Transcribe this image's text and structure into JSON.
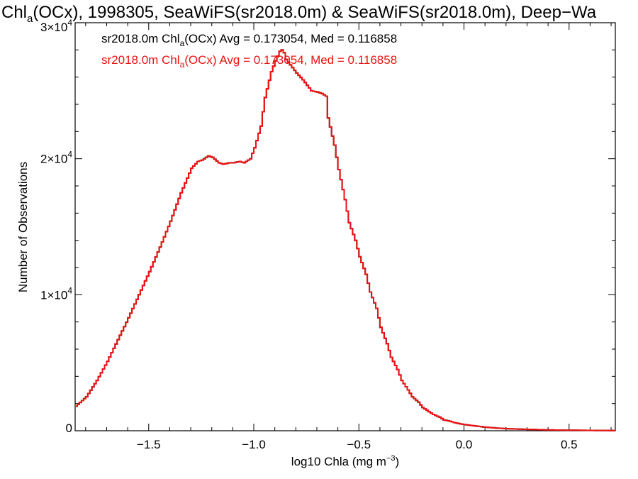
{
  "chart_data": {
    "type": "line",
    "title": {
      "prefix": "Chl",
      "sub": "a",
      "suffix": "(OCx), 1998305, SeaWiFS(sr2018.0m) & SeaWiFS(sr2018.0m), Deep−Wa"
    },
    "xlabel": {
      "main": "log10 Chla (mg m",
      "sup": "−3",
      "close": ")"
    },
    "ylabel": "Number of Observations",
    "xlim": [
      -1.85,
      0.72
    ],
    "ylim": [
      0,
      30000
    ],
    "x_ticks": [
      {
        "value": -1.5,
        "label": "−1.5"
      },
      {
        "value": -1.0,
        "label": "−1.0"
      },
      {
        "value": -0.5,
        "label": "−0.5"
      },
      {
        "value": 0.0,
        "label": "0.0"
      },
      {
        "value": 0.5,
        "label": "0.5"
      }
    ],
    "y_ticks": [
      {
        "value": 0,
        "mant": "0",
        "exp": ""
      },
      {
        "value": 10000,
        "mant": "1×10",
        "exp": "4"
      },
      {
        "value": 20000,
        "mant": "2×10",
        "exp": "4"
      },
      {
        "value": 30000,
        "mant": "3×10",
        "exp": "4"
      }
    ],
    "legend_placement": "top-left",
    "series": [
      {
        "name": {
          "pre": "sr2018.0m Chl",
          "sub": "a",
          "post": "(OCx) Avg = 0.173054, Med = 0.116858"
        },
        "color": "#000000",
        "x": [
          -1.85,
          -1.8,
          -1.75,
          -1.7,
          -1.65,
          -1.6,
          -1.55,
          -1.5,
          -1.45,
          -1.4,
          -1.35,
          -1.3,
          -1.27,
          -1.25,
          -1.22,
          -1.2,
          -1.17,
          -1.15,
          -1.12,
          -1.1,
          -1.07,
          -1.05,
          -1.02,
          -1.0,
          -0.97,
          -0.95,
          -0.92,
          -0.9,
          -0.88,
          -0.87,
          -0.86,
          -0.85,
          -0.83,
          -0.8,
          -0.77,
          -0.75,
          -0.73,
          -0.7,
          -0.68,
          -0.66,
          -0.65,
          -0.62,
          -0.6,
          -0.57,
          -0.55,
          -0.52,
          -0.5,
          -0.47,
          -0.45,
          -0.42,
          -0.4,
          -0.37,
          -0.35,
          -0.32,
          -0.3,
          -0.27,
          -0.25,
          -0.22,
          -0.2,
          -0.17,
          -0.15,
          -0.12,
          -0.1,
          -0.07,
          -0.05,
          -0.02,
          0.0,
          0.05,
          0.1,
          0.15,
          0.2,
          0.3,
          0.4,
          0.5,
          0.6,
          0.72
        ],
        "y": [
          1800,
          2500,
          3700,
          5100,
          6700,
          8300,
          10000,
          11700,
          13500,
          15400,
          17500,
          19300,
          19800,
          19900,
          20200,
          20100,
          19700,
          19600,
          19700,
          19700,
          19800,
          19700,
          20000,
          20800,
          22400,
          24500,
          26400,
          27200,
          27900,
          28000,
          27800,
          27300,
          26900,
          26300,
          25800,
          25400,
          25000,
          24900,
          24800,
          24600,
          23000,
          21000,
          19200,
          17000,
          15300,
          14000,
          12800,
          11500,
          10200,
          9000,
          7600,
          6400,
          5400,
          4500,
          3700,
          3000,
          2500,
          2100,
          1700,
          1400,
          1200,
          1000,
          800,
          700,
          600,
          500,
          450,
          350,
          260,
          200,
          150,
          100,
          60,
          40,
          25,
          15
        ]
      },
      {
        "name": {
          "pre": "sr2018.0m Chl",
          "sub": "a",
          "post": "(OCx) Avg = 0.173054, Med = 0.116858"
        },
        "color": "#ee1111",
        "x": [
          -1.85,
          -1.8,
          -1.75,
          -1.7,
          -1.65,
          -1.6,
          -1.55,
          -1.5,
          -1.45,
          -1.4,
          -1.35,
          -1.3,
          -1.27,
          -1.25,
          -1.22,
          -1.2,
          -1.17,
          -1.15,
          -1.12,
          -1.1,
          -1.07,
          -1.05,
          -1.02,
          -1.0,
          -0.97,
          -0.95,
          -0.92,
          -0.9,
          -0.88,
          -0.87,
          -0.86,
          -0.85,
          -0.83,
          -0.8,
          -0.77,
          -0.75,
          -0.73,
          -0.7,
          -0.68,
          -0.66,
          -0.65,
          -0.62,
          -0.6,
          -0.57,
          -0.55,
          -0.52,
          -0.5,
          -0.47,
          -0.45,
          -0.42,
          -0.4,
          -0.37,
          -0.35,
          -0.32,
          -0.3,
          -0.27,
          -0.25,
          -0.22,
          -0.2,
          -0.17,
          -0.15,
          -0.12,
          -0.1,
          -0.07,
          -0.05,
          -0.02,
          0.0,
          0.05,
          0.1,
          0.15,
          0.2,
          0.3,
          0.4,
          0.5,
          0.6,
          0.72
        ],
        "y": [
          1800,
          2500,
          3700,
          5100,
          6700,
          8300,
          10000,
          11700,
          13500,
          15400,
          17500,
          19300,
          19800,
          19900,
          20200,
          20100,
          19700,
          19600,
          19700,
          19700,
          19800,
          19700,
          20000,
          20800,
          22400,
          24500,
          26400,
          27200,
          27900,
          28000,
          27800,
          27300,
          26900,
          26300,
          25800,
          25400,
          25000,
          24900,
          24800,
          24600,
          23000,
          21000,
          19200,
          17000,
          15300,
          14000,
          12800,
          11500,
          10200,
          9000,
          7600,
          6400,
          5400,
          4500,
          3700,
          3000,
          2500,
          2100,
          1700,
          1400,
          1200,
          1000,
          800,
          700,
          600,
          500,
          450,
          350,
          260,
          200,
          150,
          100,
          60,
          40,
          25,
          15
        ]
      }
    ]
  }
}
